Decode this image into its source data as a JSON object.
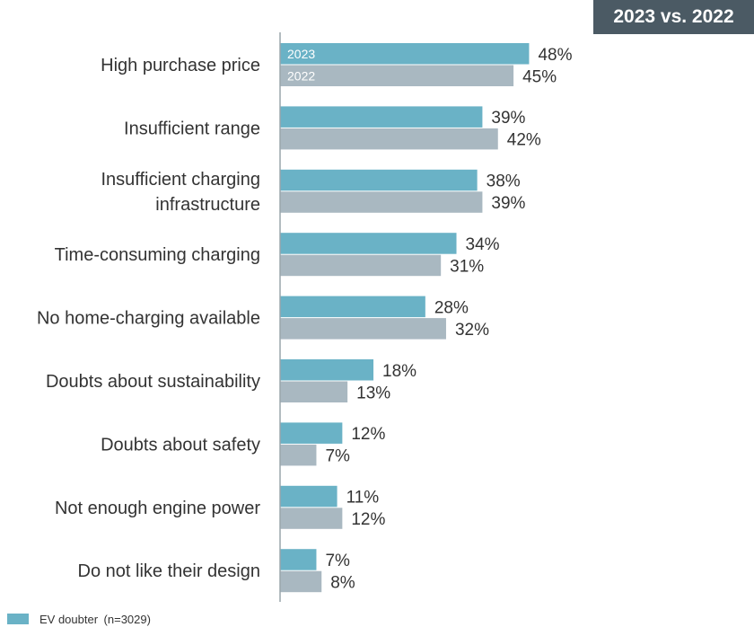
{
  "badge": "2023 vs. 2022",
  "legend": {
    "label": "EV doubter (n=3029)"
  },
  "colors": {
    "series_2023": "#6ab2c6",
    "series_2022": "#a9b8c1",
    "axis": "#9aa5ab",
    "badge_bg": "#4b5a64"
  },
  "chart_data": {
    "type": "bar",
    "orientation": "horizontal",
    "value_format": "percent",
    "xlim": [
      0,
      50
    ],
    "categories": [
      [
        "High purchase price"
      ],
      [
        "Insufficient range"
      ],
      [
        "Insufficient charging",
        "infrastructure"
      ],
      [
        "Time-consuming charging"
      ],
      [
        "No home-charging available"
      ],
      [
        "Doubts about sustainability"
      ],
      [
        "Doubts about safety"
      ],
      [
        "Not enough engine power"
      ],
      [
        "Do not like their design"
      ]
    ],
    "series": [
      {
        "name": "2023",
        "values": [
          48,
          39,
          38,
          34,
          28,
          18,
          12,
          11,
          7
        ]
      },
      {
        "name": "2022",
        "values": [
          45,
          42,
          39,
          31,
          32,
          13,
          7,
          12,
          8
        ]
      }
    ],
    "in_bar_series_labels_on_first_category": true
  }
}
